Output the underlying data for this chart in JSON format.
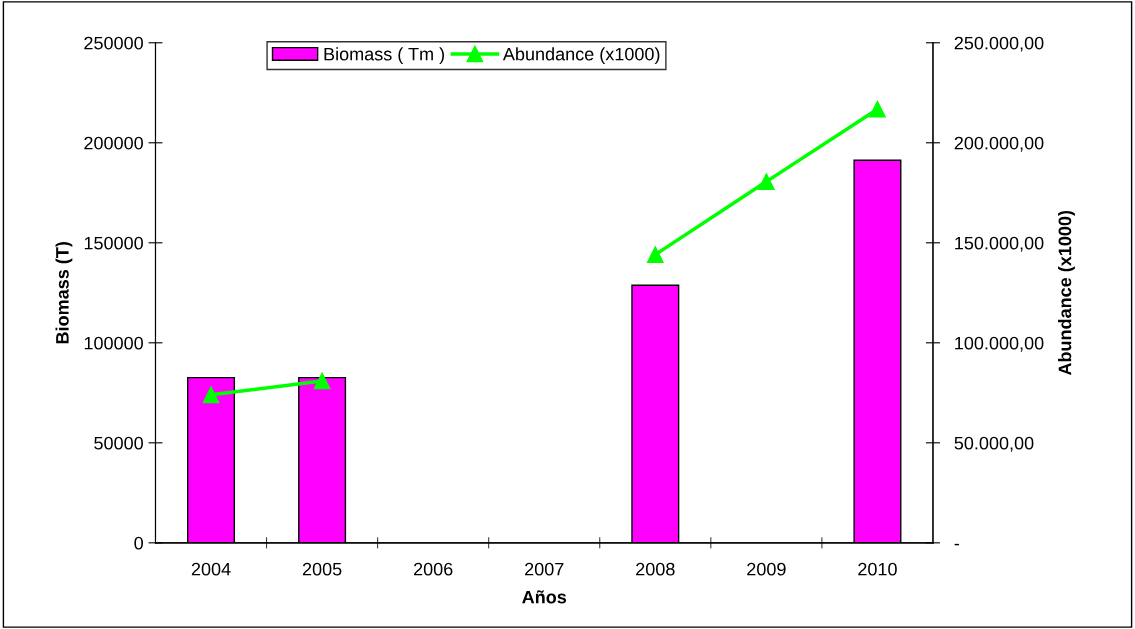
{
  "chart_data": {
    "type": "bar",
    "xlabel": "Años",
    "ylabel": "Biomass (T)",
    "y2label": "Abundance (x1000)",
    "categories": [
      "2004",
      "2005",
      "2006",
      "2007",
      "2008",
      "2009",
      "2010"
    ],
    "series": [
      {
        "name": "Biomass ( Tm )",
        "color": "#ff00ff",
        "values": [
          82600,
          82600,
          null,
          null,
          128800,
          null,
          191300
        ]
      },
      {
        "name": "Abundance (x1000)",
        "type": "line",
        "axis": "y2",
        "color": "#00ff00",
        "marker": "triangle",
        "values": [
          74000,
          80900,
          null,
          null,
          144100,
          180600,
          216800
        ]
      }
    ],
    "ylim": [
      0,
      250000
    ],
    "yticks": [
      0,
      50000,
      100000,
      150000,
      200000,
      250000
    ],
    "y2lim": [
      0,
      250000
    ],
    "y2ticks": [
      {
        "value": 0,
        "label": "-"
      },
      {
        "value": 50000,
        "label": "50.000,00"
      },
      {
        "value": 100000,
        "label": "100.000,00"
      },
      {
        "value": 150000,
        "label": "150.000,00"
      },
      {
        "value": 200000,
        "label": "200.000,00"
      },
      {
        "value": 250000,
        "label": "250.000,00"
      }
    ],
    "grid": false,
    "legend": "top"
  }
}
